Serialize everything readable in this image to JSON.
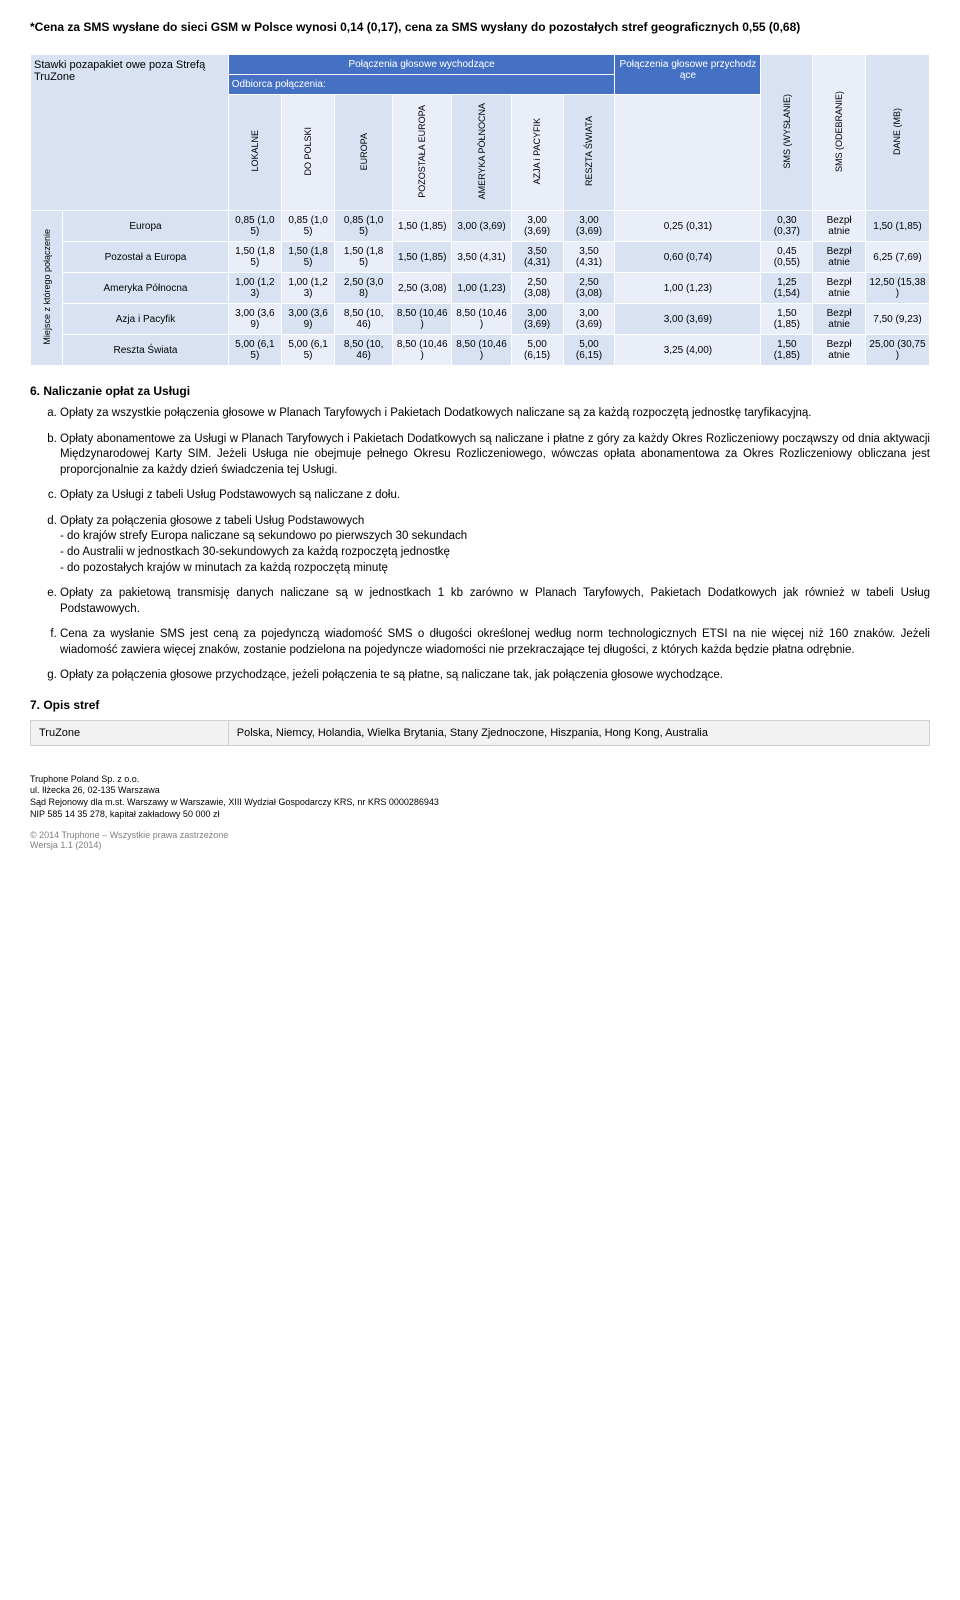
{
  "note_top": "*Cena za SMS wysłane do sieci GSM w Polsce wynosi 0,14 (0,17), cena za SMS wysłany do pozostałych stref geograficznych 0,55 (0,68)",
  "stawki_box": "Stawki pozapakiet owe poza Strefą TruZone",
  "hdr": {
    "outgoing": "Połączenia głosowe wychodzące",
    "recipient": "Odbiorca połączenia:",
    "incoming": "Połączenia głosowe przychodz ące",
    "sms_out": "SMS (WYSŁANIE)",
    "sms_in": "SMS (ODEBRANIE)",
    "data": "DANE (MB)",
    "origin": "Miejsce z którego połączenie",
    "cols": {
      "lokalne": "LOKALNE",
      "do_polski": "DO POLSKI",
      "europa": "EUROPA",
      "poz_europa": "POZOSTAŁA EUROPA",
      "ameryka": "AMERYKA PÓŁNOCNA",
      "azja": "AZJA i PACYFIK",
      "reszta": "RESZTA ŚWIATA"
    }
  },
  "rows": [
    {
      "label": "Europa",
      "cells": [
        "0,85 (1,0 5)",
        "0,85 (1,0 5)",
        "0,85 (1,0 5)",
        "1,50 (1,85)",
        "3,00 (3,69)",
        "3,00 (3,69)",
        "3,00 (3,69)",
        "0,25 (0,31)",
        "0,30 (0,37)",
        "Bezpł atnie",
        "1,50 (1,85)"
      ]
    },
    {
      "label": "Pozostał a Europa",
      "cells": [
        "1,50 (1,8 5)",
        "1,50 (1,8 5)",
        "1,50 (1,8 5)",
        "1,50 (1,85)",
        "3,50 (4,31)",
        "3,50 (4,31)",
        "3,50 (4,31)",
        "0,60 (0,74)",
        "0,45 (0,55)",
        "Bezpł atnie",
        "6,25 (7,69)"
      ]
    },
    {
      "label": "Ameryka Północna",
      "cells": [
        "1,00 (1,2 3)",
        "1,00 (1,2 3)",
        "2,50 (3,0 8)",
        "2,50 (3,08)",
        "1,00 (1,23)",
        "2,50 (3,08)",
        "2,50 (3,08)",
        "1,00 (1,23)",
        "1,25 (1,54)",
        "Bezpł atnie",
        "12,50 (15,38 )"
      ]
    },
    {
      "label": "Azja i Pacyfik",
      "cells": [
        "3,00 (3,6 9)",
        "3,00 (3,6 9)",
        "8,50 (10, 46)",
        "8,50 (10,46 )",
        "8,50 (10,46 )",
        "3,00 (3,69)",
        "3,00 (3,69)",
        "3,00 (3,69)",
        "1,50 (1,85)",
        "Bezpł atnie",
        "7,50 (9,23)"
      ]
    },
    {
      "label": "Reszta Świata",
      "cells": [
        "5,00 (6,1 5)",
        "5,00 (6,1 5)",
        "8,50 (10, 46)",
        "8,50 (10,46 )",
        "8,50 (10,46 )",
        "5,00 (6,15)",
        "5,00 (6,15)",
        "3,25 (4,00)",
        "1,50 (1,85)",
        "Bezpł atnie",
        "25,00 (30,75 )"
      ]
    }
  ],
  "section6": {
    "title": "6.      Naliczanie opłat za Usługi",
    "items": [
      "Opłaty za wszystkie połączenia głosowe w Planach Taryfowych i Pakietach Dodatkowych naliczane są za każdą rozpoczętą jednostkę taryfikacyjną.",
      "Opłaty abonamentowe za Usługi w Planach Taryfowych i Pakietach Dodatkowych są naliczane i płatne z góry za każdy Okres Rozliczeniowy począwszy od dnia aktywacji Międzynarodowej Karty SIM. Jeżeli Usługa nie obejmuje pełnego Okresu Rozliczeniowego, wówczas opłata abonamentowa za Okres Rozliczeniowy obliczana jest proporcjonalnie za każdy dzień świadczenia tej Usługi.",
      " Opłaty za Usługi z tabeli Usług Podstawowych są naliczane z dołu.",
      "Opłaty za połączenia głosowe z tabeli Usług Podstawowych\n- do krajów strefy Europa naliczane są sekundowo po pierwszych 30 sekundach\n- do Australii w jednostkach 30-sekundowych za każdą rozpoczętą jednostkę\n- do pozostałych krajów w minutach za każdą rozpoczętą minutę",
      "Opłaty za pakietową transmisję danych naliczane są w jednostkach 1 kb zarówno w Planach Taryfowych, Pakietach Dodatkowych jak również w tabeli Usług Podstawowych.",
      "Cena za wysłanie SMS jest ceną za pojedynczą wiadomość SMS o długości określonej według norm technologicznych ETSI na nie więcej niż 160 znaków. Jeżeli wiadomość zawiera więcej znaków, zostanie podzielona na pojedyncze wiadomości nie przekraczające tej długości, z których każda będzie płatna odrębnie.",
      "Opłaty za połączenia głosowe przychodzące, jeżeli połączenia te są płatne, są naliczane tak, jak połączenia głosowe wychodzące."
    ]
  },
  "section7": {
    "title": "7.      Opis stref",
    "zone_label": "TruZone",
    "zone_value": "Polska, Niemcy, Holandia, Wielka Brytania, Stany Zjednoczone, Hiszpania, Hong Kong, Australia"
  },
  "footer": {
    "l1": "Truphone Poland Sp. z o.o.",
    "l2": "ul. Iłżecka 26, 02-135 Warszawa",
    "l3": "Sąd Rejonowy dla m.st. Warszawy w Warszawie, XIII Wydział Gospodarczy KRS, nr KRS 0000286943",
    "l4": "NIP 585 14 35 278, kapitał zakładowy 50 000 zł",
    "copy1": "© 2014 Truphone – Wszystkie prawa zastrzeżone",
    "copy2": "Wersja 1.1 (2014)"
  }
}
